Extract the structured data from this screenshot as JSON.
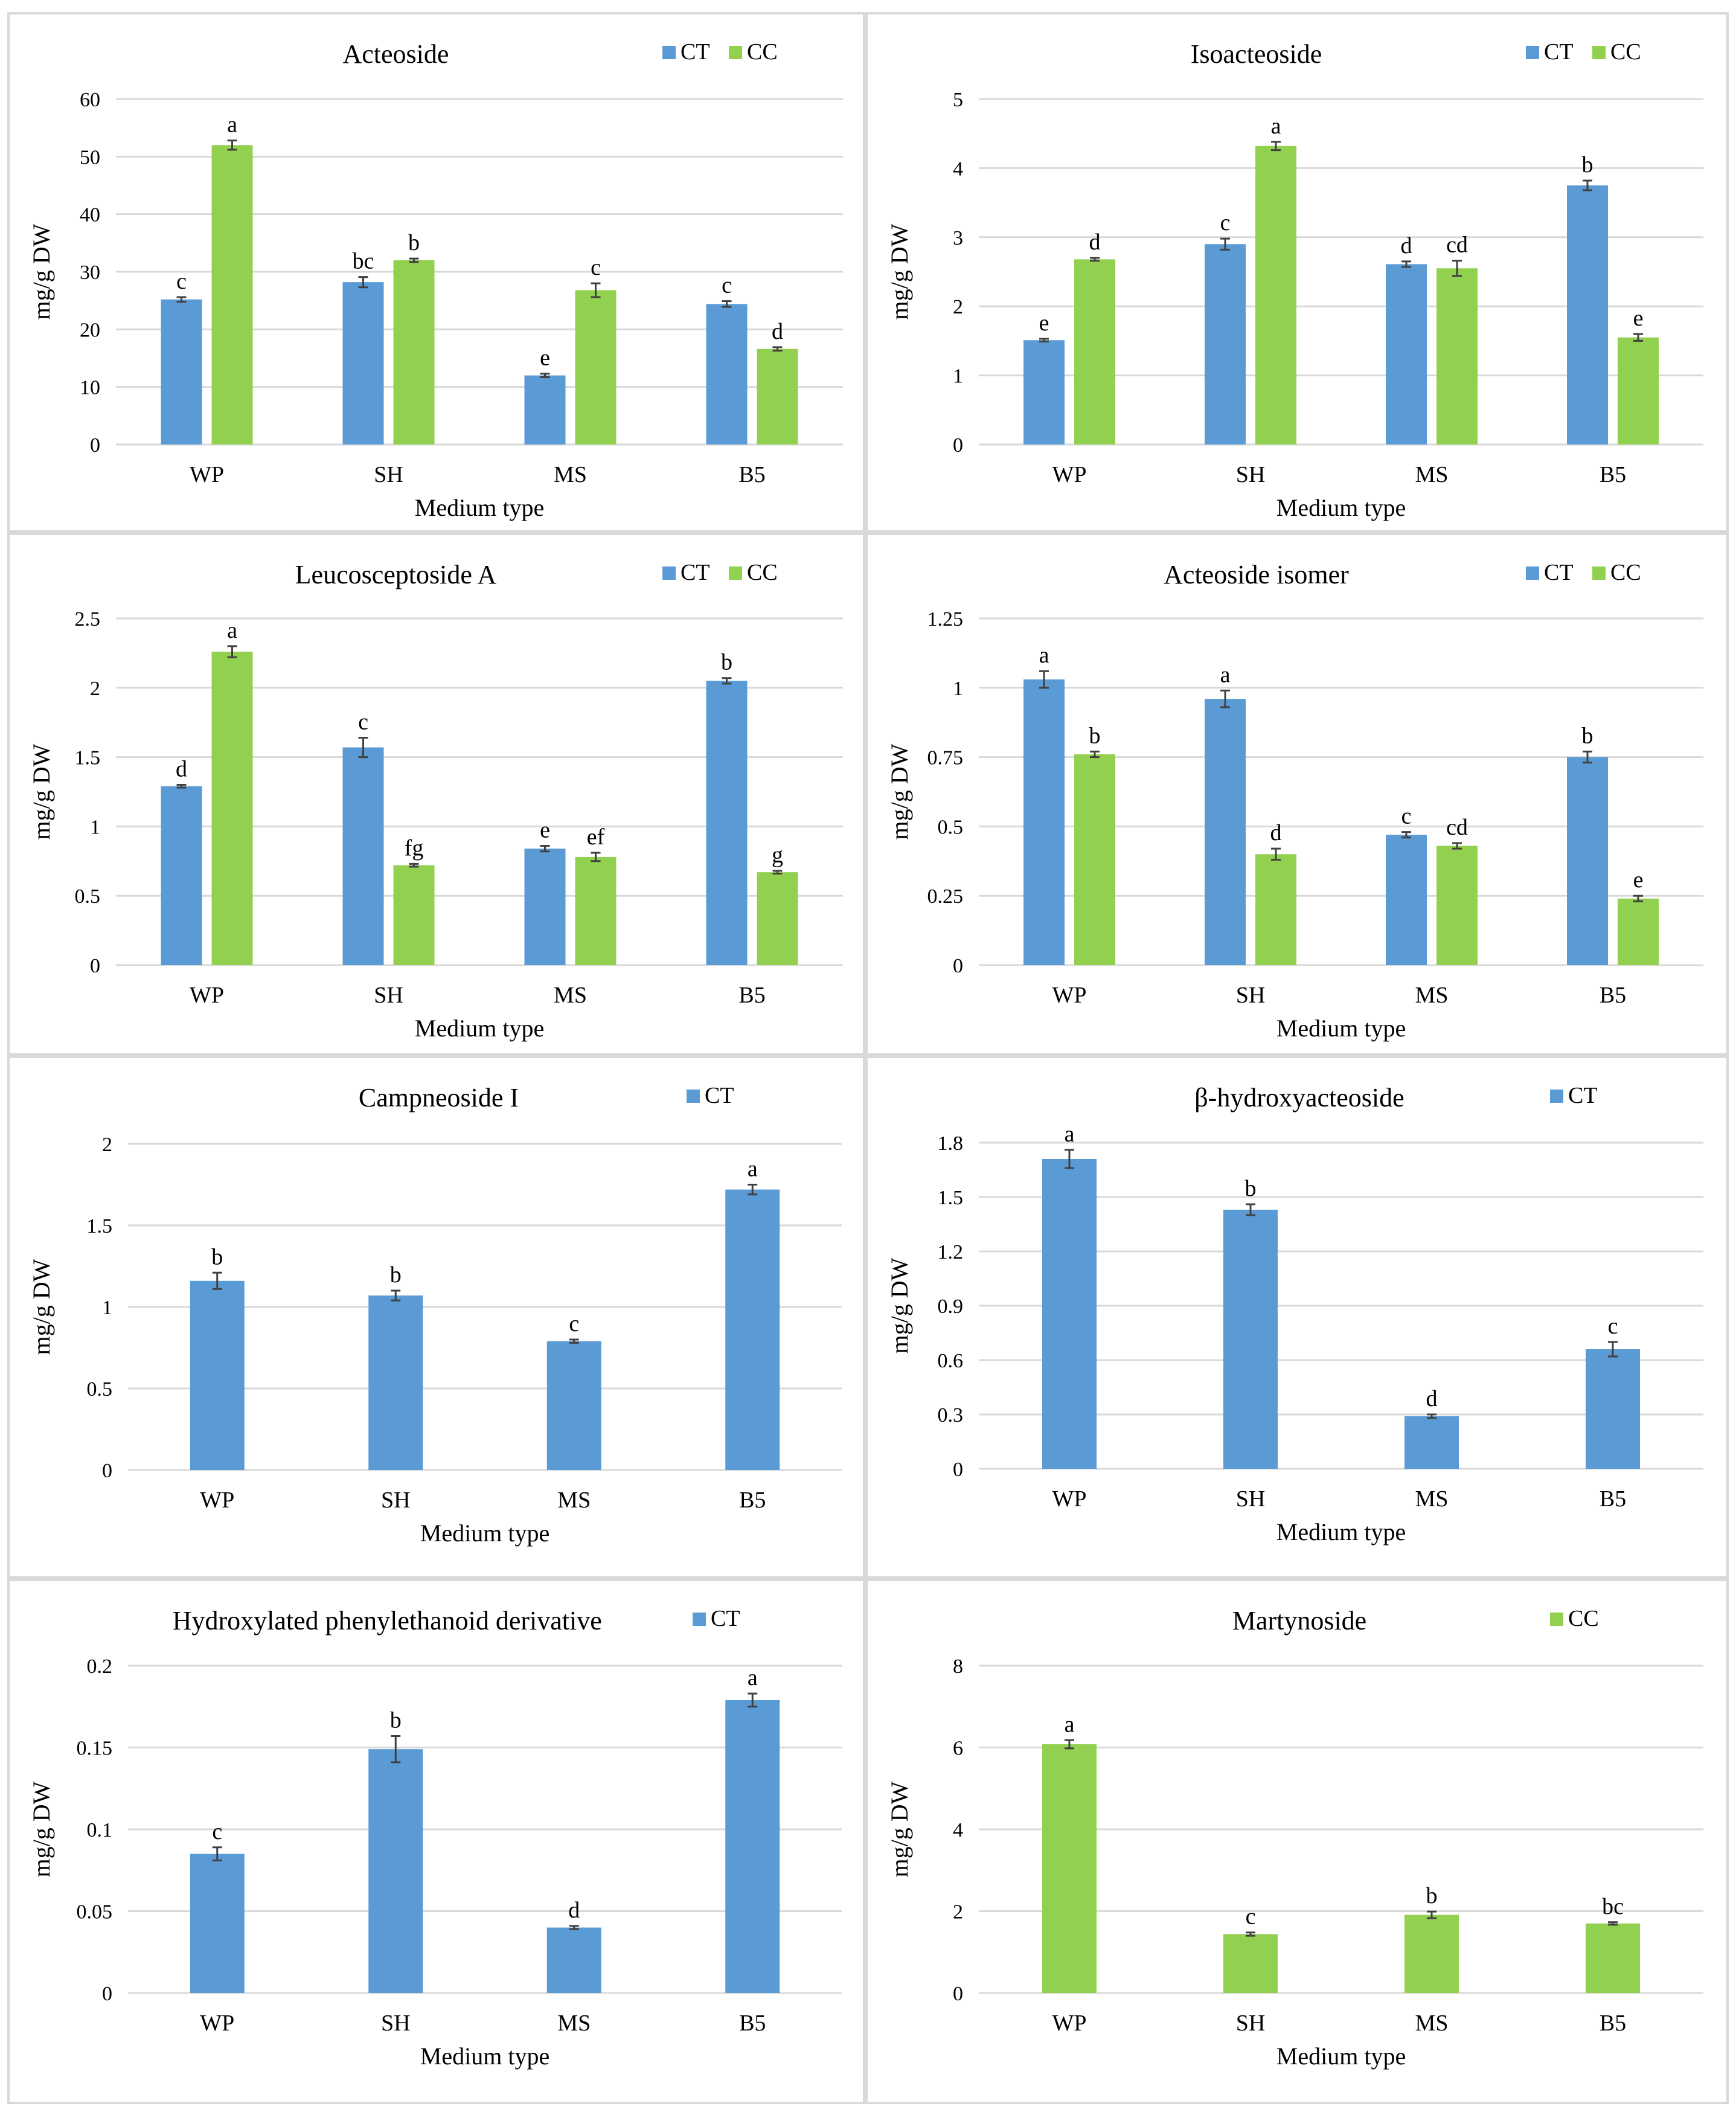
{
  "axis_label_x": "Medium type",
  "axis_label_y": "mg/g DW",
  "colors": {
    "CT": "#5b9bd5",
    "CC": "#92d050"
  },
  "chart_data": [
    {
      "type": "bar",
      "title": "Acteoside",
      "categories": [
        "WP",
        "SH",
        "MS",
        "B5"
      ],
      "ylim": [
        0,
        60
      ],
      "ticks": [
        "0",
        "10",
        "20",
        "30",
        "40",
        "50",
        "60"
      ],
      "xlabel": "Medium type",
      "ylabel": "mg/g DW",
      "legend": "top-right",
      "series": [
        {
          "name": "CT",
          "values": [
            25.2,
            28.2,
            12.0,
            24.4
          ],
          "errors": [
            0.4,
            0.9,
            0.3,
            0.5
          ],
          "letters": [
            "c",
            "bc",
            "e",
            "c"
          ]
        },
        {
          "name": "CC",
          "values": [
            52.0,
            32.0,
            26.8,
            16.6
          ],
          "errors": [
            0.8,
            0.3,
            1.2,
            0.3
          ],
          "letters": [
            "a",
            "b",
            "c",
            "d"
          ]
        }
      ]
    },
    {
      "type": "bar",
      "title": "Isoacteoside",
      "categories": [
        "WP",
        "SH",
        "MS",
        "B5"
      ],
      "ylim": [
        0,
        5
      ],
      "ticks": [
        "0",
        "1",
        "2",
        "3",
        "4",
        "5"
      ],
      "xlabel": "Medium type",
      "ylabel": "mg/g DW",
      "legend": "top-right",
      "series": [
        {
          "name": "CT",
          "values": [
            1.51,
            2.9,
            2.61,
            3.75
          ],
          "errors": [
            0.02,
            0.08,
            0.04,
            0.07
          ],
          "letters": [
            "e",
            "c",
            "d",
            "b"
          ]
        },
        {
          "name": "CC",
          "values": [
            2.68,
            4.32,
            2.55,
            1.55
          ],
          "errors": [
            0.02,
            0.06,
            0.11,
            0.05
          ],
          "letters": [
            "d",
            "a",
            "cd",
            "e"
          ]
        }
      ]
    },
    {
      "type": "bar",
      "title": "Leucosceptoside A",
      "categories": [
        "WP",
        "SH",
        "MS",
        "B5"
      ],
      "ylim": [
        0,
        2.5
      ],
      "ticks": [
        "0",
        "0.5",
        "1",
        "1.5",
        "2",
        "2.5"
      ],
      "xlabel": "Medium type",
      "ylabel": "mg/g DW",
      "legend": "top-right",
      "series": [
        {
          "name": "CT",
          "values": [
            1.29,
            1.57,
            0.84,
            2.05
          ],
          "errors": [
            0.01,
            0.07,
            0.02,
            0.02
          ],
          "letters": [
            "d",
            "c",
            "e",
            "b"
          ]
        },
        {
          "name": "CC",
          "values": [
            2.26,
            0.72,
            0.78,
            0.67
          ],
          "errors": [
            0.04,
            0.01,
            0.03,
            0.01
          ],
          "letters": [
            "a",
            "fg",
            "ef",
            "g"
          ]
        }
      ]
    },
    {
      "type": "bar",
      "title": "Acteoside isomer",
      "categories": [
        "WP",
        "SH",
        "MS",
        "B5"
      ],
      "ylim": [
        0,
        1.25
      ],
      "ticks": [
        "0",
        "0.25",
        "0.5",
        "0.75",
        "1",
        "1.25"
      ],
      "xlabel": "Medium type",
      "ylabel": "mg/g DW",
      "legend": "top-right",
      "series": [
        {
          "name": "CT",
          "values": [
            1.03,
            0.96,
            0.47,
            0.75
          ],
          "errors": [
            0.03,
            0.03,
            0.01,
            0.02
          ],
          "letters": [
            "a",
            "a",
            "c",
            "b"
          ]
        },
        {
          "name": "CC",
          "values": [
            0.76,
            0.4,
            0.43,
            0.24
          ],
          "errors": [
            0.01,
            0.02,
            0.01,
            0.01
          ],
          "letters": [
            "b",
            "d",
            "cd",
            "e"
          ]
        }
      ]
    },
    {
      "type": "bar",
      "title": "Campneoside I",
      "categories": [
        "WP",
        "SH",
        "MS",
        "B5"
      ],
      "ylim": [
        0,
        2
      ],
      "ticks": [
        "0",
        "0.5",
        "1",
        "1.5",
        "2"
      ],
      "xlabel": "Medium type",
      "ylabel": "mg/g DW",
      "legend": "top-right",
      "series": [
        {
          "name": "CT",
          "values": [
            1.16,
            1.07,
            0.79,
            1.72
          ],
          "errors": [
            0.05,
            0.03,
            0.01,
            0.03
          ],
          "letters": [
            "b",
            "b",
            "c",
            "a"
          ]
        }
      ]
    },
    {
      "type": "bar",
      "title": "β-hydroxyacteoside",
      "categories": [
        "WP",
        "SH",
        "MS",
        "B5"
      ],
      "ylim": [
        0,
        1.8
      ],
      "ticks": [
        "0",
        "0.3",
        "0.6",
        "0.9",
        "1.2",
        "1.5",
        "1.8"
      ],
      "xlabel": "Medium type",
      "ylabel": "mg/g DW",
      "legend": "top-right",
      "series": [
        {
          "name": "CT",
          "values": [
            1.71,
            1.43,
            0.29,
            0.66
          ],
          "errors": [
            0.05,
            0.03,
            0.01,
            0.04
          ],
          "letters": [
            "a",
            "b",
            "d",
            "c"
          ]
        }
      ]
    },
    {
      "type": "bar",
      "title": "Hydroxylated phenylethanoid derivative",
      "categories": [
        "WP",
        "SH",
        "MS",
        "B5"
      ],
      "ylim": [
        0,
        0.2
      ],
      "ticks": [
        "0",
        "0.05",
        "0.1",
        "0.15",
        "0.2"
      ],
      "xlabel": "Medium type",
      "ylabel": "mg/g DW",
      "legend": "top-right",
      "series": [
        {
          "name": "CT",
          "values": [
            0.085,
            0.149,
            0.04,
            0.179
          ],
          "errors": [
            0.004,
            0.008,
            0.001,
            0.004
          ],
          "letters": [
            "c",
            "b",
            "d",
            "a"
          ]
        }
      ]
    },
    {
      "type": "bar",
      "title": "Martynoside",
      "categories": [
        "WP",
        "SH",
        "MS",
        "B5"
      ],
      "ylim": [
        0,
        8
      ],
      "ticks": [
        "0",
        "2",
        "4",
        "6",
        "8"
      ],
      "xlabel": "Medium type",
      "ylabel": "mg/g DW",
      "legend": "top-right",
      "series": [
        {
          "name": "CC",
          "values": [
            6.08,
            1.44,
            1.91,
            1.7
          ],
          "errors": [
            0.1,
            0.04,
            0.08,
            0.03
          ],
          "letters": [
            "a",
            "c",
            "b",
            "bc"
          ]
        }
      ]
    }
  ]
}
